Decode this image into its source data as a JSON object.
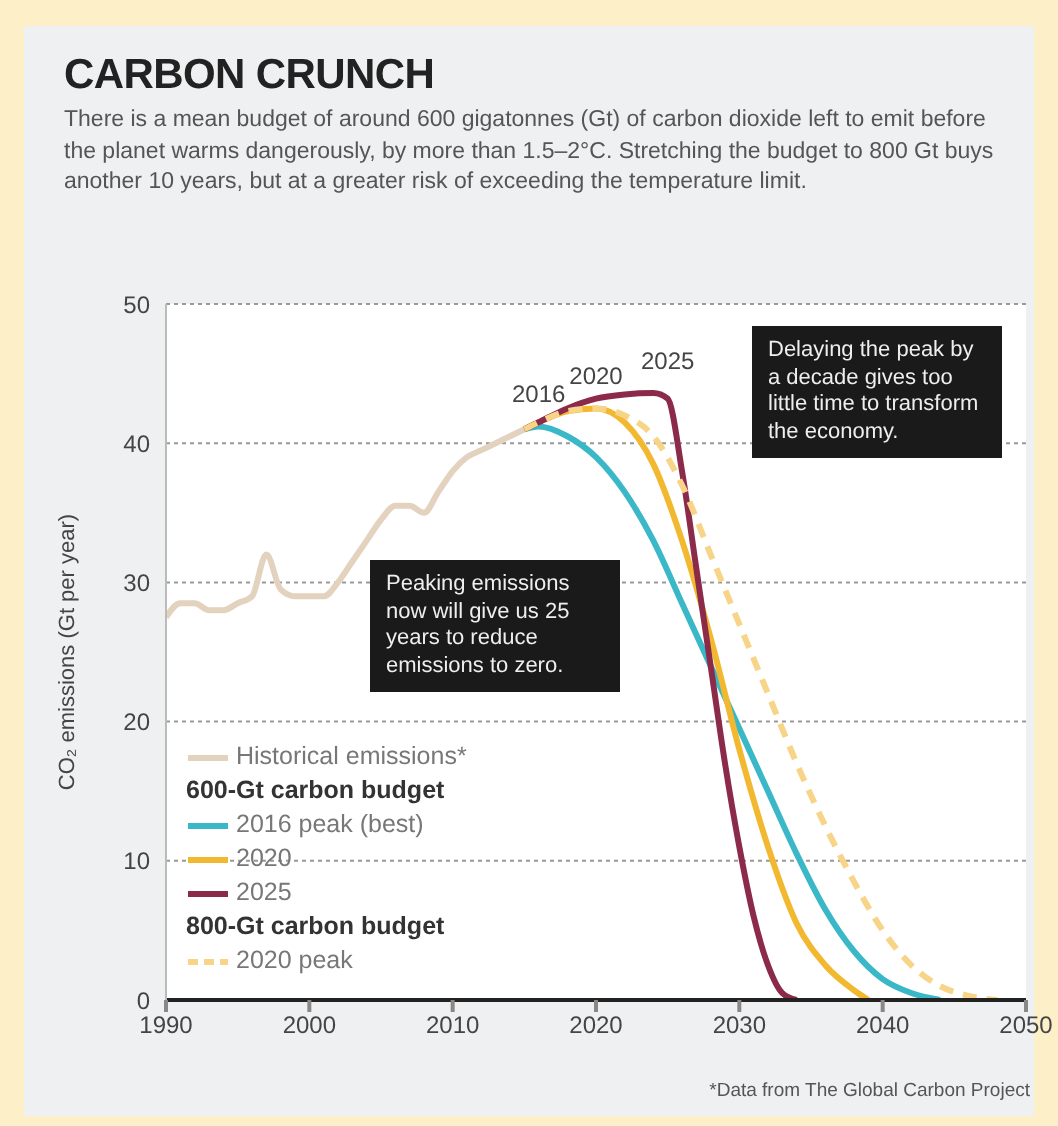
{
  "chart_data": {
    "type": "line",
    "title": "CARBON CRUNCH",
    "subtitle": "There is a mean budget of around 600 gigatonnes (Gt) of carbon dioxide left to emit before the planet warms dangerously, by more than 1.5–2°C. Stretching the budget to 800 Gt buys another 10 years, but at a greater risk of exceeding the temperature limit.",
    "ylabel": "CO₂ emissions (Gt per year)",
    "xlim": [
      1990,
      2050
    ],
    "xticks": [
      1990,
      2000,
      2010,
      2020,
      2030,
      2040,
      2050
    ],
    "ylim": [
      0,
      50
    ],
    "yticks": [
      0,
      10,
      20,
      30,
      40,
      50
    ],
    "grid": "y",
    "legend": "bottom left",
    "marker": "none",
    "series": [
      {
        "name": "Historical emissions*",
        "color": "#e2d2be",
        "x": [
          1990,
          1991,
          1992,
          1993,
          1994,
          1995,
          1996,
          1997,
          1998,
          1999,
          2000,
          2001,
          2002,
          2003,
          2004,
          2005,
          2006,
          2007,
          2008,
          2009,
          2010,
          2011,
          2012,
          2013,
          2014,
          2015
        ],
        "values": [
          27.5,
          28.5,
          28.5,
          28,
          28,
          28.5,
          29,
          32,
          29.5,
          29,
          29,
          29,
          30,
          31.5,
          33,
          34.5,
          35.5,
          35.5,
          35,
          36.5,
          38,
          39,
          39.5,
          40,
          40.5,
          41
        ]
      },
      {
        "name": "2016 peak (best)",
        "color": "#3bb8c8",
        "x": [
          2015,
          2016,
          2018,
          2020,
          2022,
          2024,
          2026,
          2028,
          2030,
          2032,
          2034,
          2036,
          2038,
          2040,
          2042,
          2044
        ],
        "values": [
          41,
          41.2,
          40.5,
          39,
          36.5,
          33,
          28.5,
          24,
          19.5,
          15,
          10.5,
          6.5,
          3.5,
          1.5,
          0.5,
          0
        ]
      },
      {
        "name": "2020",
        "color": "#f2b830",
        "x": [
          2015,
          2016,
          2018,
          2020,
          2022,
          2024,
          2026,
          2028,
          2030,
          2032,
          2034,
          2036,
          2038,
          2039
        ],
        "values": [
          41,
          41.5,
          42.3,
          42.5,
          41.5,
          38.5,
          33,
          26,
          18,
          11,
          5.5,
          2.5,
          0.7,
          0
        ]
      },
      {
        "name": "2025",
        "color": "#8c2a4a",
        "x": [
          2015,
          2016,
          2018,
          2020,
          2022,
          2024,
          2025,
          2026,
          2027,
          2028,
          2029,
          2030,
          2031,
          2032,
          2033,
          2034
        ],
        "values": [
          41,
          41.5,
          42.5,
          43.2,
          43.5,
          43.6,
          43.2,
          38,
          31,
          24,
          17,
          11,
          6,
          2.5,
          0.5,
          0
        ]
      },
      {
        "name": "2020 peak",
        "color": "#f7d488",
        "line_style": "dashed",
        "x": [
          2015,
          2016,
          2018,
          2020,
          2022,
          2024,
          2026,
          2028,
          2030,
          2032,
          2034,
          2036,
          2038,
          2040,
          2042,
          2044,
          2046,
          2048
        ],
        "values": [
          41,
          41.5,
          42.3,
          42.5,
          42,
          40.5,
          37,
          32,
          27,
          22,
          17,
          12.5,
          8.5,
          5,
          2.5,
          1,
          0.3,
          0
        ]
      }
    ],
    "annotations": [
      {
        "text": "2016",
        "x": 2016,
        "y": 41.2
      },
      {
        "text": "2020",
        "x": 2020,
        "y": 42.5
      },
      {
        "text": "2025",
        "x": 2025,
        "y": 43.6
      },
      "Peaking emissions now will give us 25 years to reduce emissions to zero.",
      "Delaying the peak by a decade gives too little time to transform the economy.",
      "600-Gt carbon budget",
      "800-Gt carbon budget",
      "*Data from The Global Carbon Project"
    ]
  }
}
